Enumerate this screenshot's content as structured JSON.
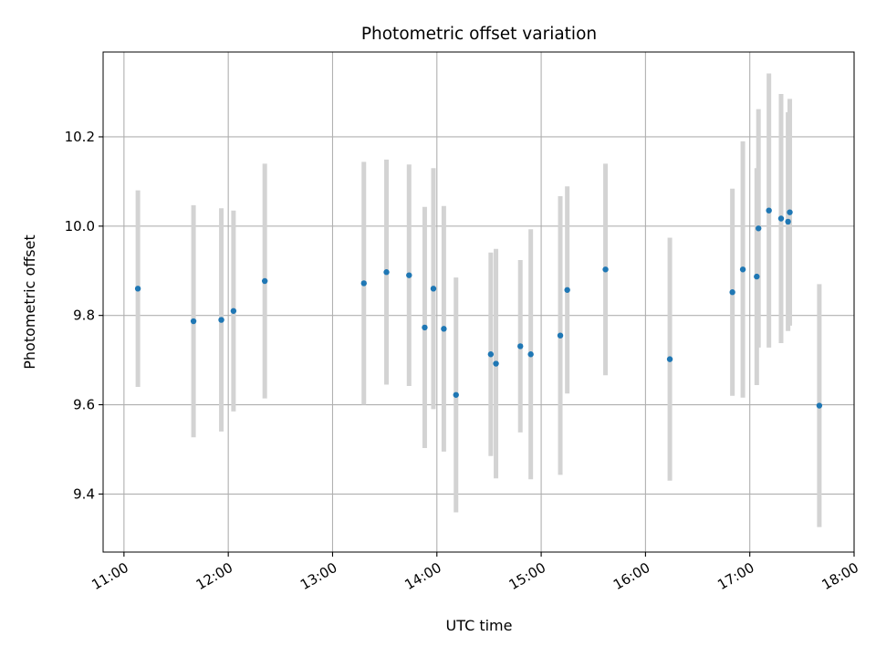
{
  "chart_data": {
    "type": "scatter",
    "title": "Photometric offset variation",
    "xlabel": "UTC time",
    "ylabel": "Photometric offset",
    "x_ticks": [
      "11:00",
      "12:00",
      "13:00",
      "14:00",
      "15:00",
      "16:00",
      "17:00",
      "18:00"
    ],
    "y_ticks": [
      "9.4",
      "9.6",
      "9.8",
      "10.0",
      "10.2"
    ],
    "xlim": [
      "10:48",
      "18:00"
    ],
    "ylim": [
      9.27,
      10.39
    ],
    "grid": true,
    "marker_color": "#1f77b4",
    "errorbar_color": "#d3d3d3",
    "series": [
      {
        "points": [
          {
            "x": "11:08",
            "y": 9.86,
            "err": 0.22
          },
          {
            "x": "11:40",
            "y": 9.787,
            "err": 0.26
          },
          {
            "x": "11:56",
            "y": 9.79,
            "err": 0.25
          },
          {
            "x": "12:03",
            "y": 9.81,
            "err": 0.225
          },
          {
            "x": "12:21",
            "y": 9.877,
            "err": 0.263
          },
          {
            "x": "13:18",
            "y": 9.872,
            "err": 0.272
          },
          {
            "x": "13:31",
            "y": 9.897,
            "err": 0.252
          },
          {
            "x": "13:44",
            "y": 9.89,
            "err": 0.248
          },
          {
            "x": "13:53",
            "y": 9.773,
            "err": 0.27
          },
          {
            "x": "13:58",
            "y": 9.86,
            "err": 0.27
          },
          {
            "x": "14:04",
            "y": 9.77,
            "err": 0.275
          },
          {
            "x": "14:11",
            "y": 9.622,
            "err": 0.263
          },
          {
            "x": "14:31",
            "y": 9.713,
            "err": 0.228
          },
          {
            "x": "14:34",
            "y": 9.692,
            "err": 0.257
          },
          {
            "x": "14:48",
            "y": 9.731,
            "err": 0.193
          },
          {
            "x": "14:54",
            "y": 9.713,
            "err": 0.28
          },
          {
            "x": "15:11",
            "y": 9.755,
            "err": 0.312
          },
          {
            "x": "15:15",
            "y": 9.857,
            "err": 0.232
          },
          {
            "x": "15:37",
            "y": 9.903,
            "err": 0.237
          },
          {
            "x": "16:14",
            "y": 9.702,
            "err": 0.272
          },
          {
            "x": "16:50",
            "y": 9.852,
            "err": 0.232
          },
          {
            "x": "16:56",
            "y": 9.903,
            "err": 0.287
          },
          {
            "x": "17:04",
            "y": 9.887,
            "err": 0.243
          },
          {
            "x": "17:05",
            "y": 9.995,
            "err": 0.267
          },
          {
            "x": "17:11",
            "y": 10.035,
            "err": 0.307
          },
          {
            "x": "17:18",
            "y": 10.017,
            "err": 0.279
          },
          {
            "x": "17:22",
            "y": 10.01,
            "err": 0.245
          },
          {
            "x": "17:23",
            "y": 10.031,
            "err": 0.254
          },
          {
            "x": "17:40",
            "y": 9.598,
            "err": 0.272
          }
        ]
      }
    ]
  }
}
